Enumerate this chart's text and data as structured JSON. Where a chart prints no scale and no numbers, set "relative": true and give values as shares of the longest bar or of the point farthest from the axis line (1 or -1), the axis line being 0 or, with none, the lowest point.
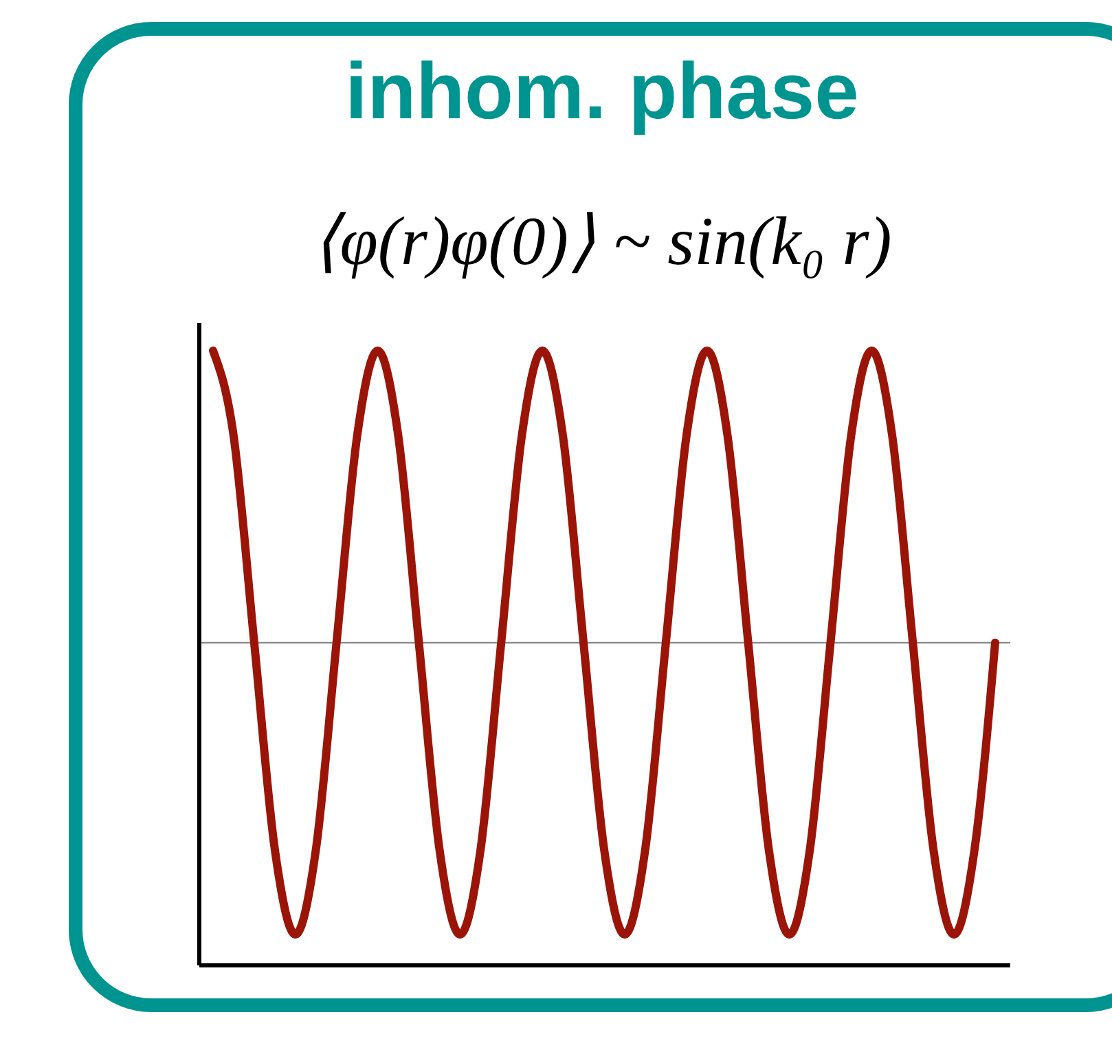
{
  "chart_data": {
    "type": "line",
    "title": "inhom. phase",
    "subtitle": "⟨φ(r)φ(0)⟩ ~ sin(k₀ r)",
    "relative": true,
    "categories": [
      null,
      null,
      null,
      null,
      null,
      null,
      null,
      null,
      null,
      null,
      null,
      null,
      null,
      null,
      null,
      null,
      null,
      null,
      null,
      null,
      null,
      null,
      null,
      null,
      null,
      null,
      null,
      null,
      null,
      null,
      null,
      null,
      null,
      null,
      null,
      null,
      null,
      null,
      null
    ],
    "series": [
      {
        "color": "#9b1408",
        "values": [
          1,
          0.861,
          0.525,
          0.189,
          0.05,
          0.189,
          0.525,
          0.861,
          1,
          0.861,
          0.525,
          0.189,
          0.05,
          0.189,
          0.525,
          0.861,
          1,
          0.861,
          0.525,
          0.189,
          0.05,
          0.189,
          0.525,
          0.861,
          1,
          0.861,
          0.525,
          0.189,
          0.05,
          0.189,
          0.525,
          0.861,
          1,
          0.861,
          0.525,
          0.189,
          0.05,
          0.189,
          0.525
        ]
      }
    ],
    "ref_lines": [
      {
        "axis": "y",
        "value": 0.525,
        "color": "#808080"
      }
    ],
    "grid": false,
    "legend": false,
    "marker": "none",
    "line_style": "solid"
  }
}
